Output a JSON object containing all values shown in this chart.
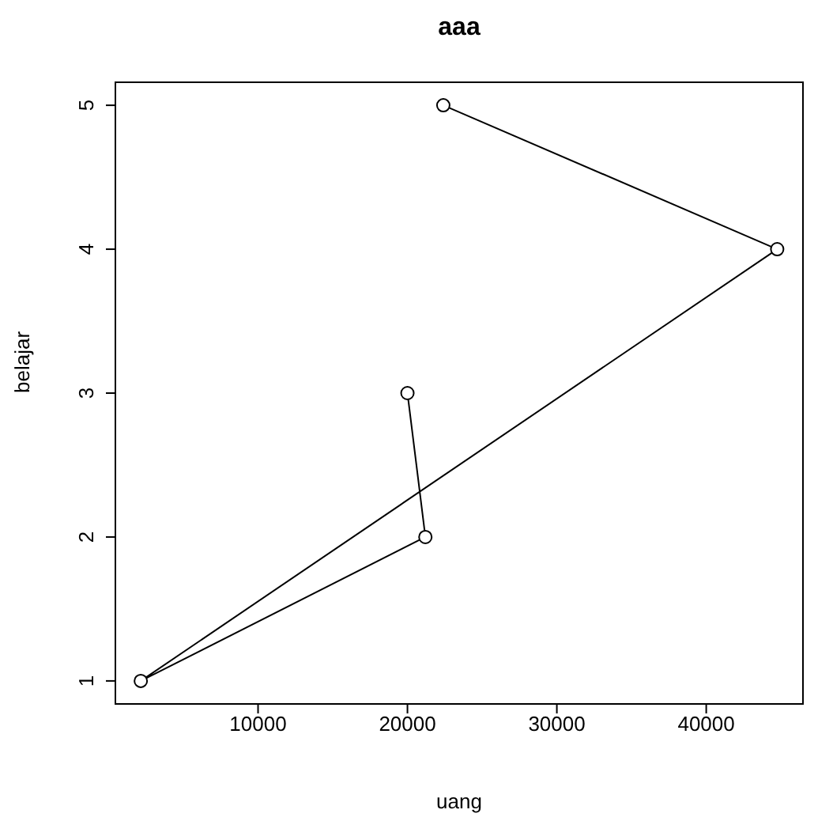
{
  "chart_data": {
    "type": "line",
    "title": "aaa",
    "xlabel": "uang",
    "ylabel": "belajar",
    "x": [
      20000,
      21200,
      2150,
      44750,
      22400
    ],
    "series": [
      {
        "color": "#000000",
        "values": [
          3,
          2,
          1,
          4,
          5
        ]
      }
    ],
    "xlim": [
      450,
      46475
    ],
    "xticks": [
      10000,
      20000,
      30000,
      40000
    ],
    "ylim": [
      0.84,
      5.16
    ],
    "yticks": [
      1,
      2,
      3,
      4,
      5
    ],
    "grid": false,
    "legend": false,
    "marker": "circle",
    "line_style": "solid"
  }
}
